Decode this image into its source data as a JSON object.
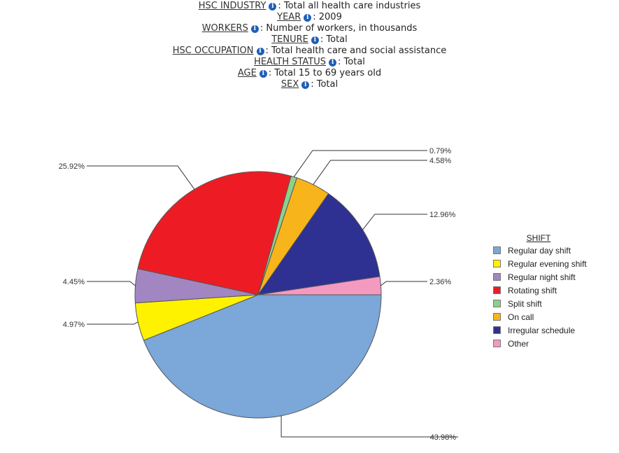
{
  "filters": [
    {
      "name": "HSC INDUSTRY",
      "value": "Total all health care industries"
    },
    {
      "name": "YEAR",
      "value": "2009"
    },
    {
      "name": "WORKERS",
      "value": "Number of workers, in thousands"
    },
    {
      "name": "TENURE",
      "value": "Total"
    },
    {
      "name": "HSC OCCUPATION",
      "value": "Total health care and social assistance"
    },
    {
      "name": "HEALTH STATUS",
      "value": "Total"
    },
    {
      "name": "AGE",
      "value": "Total 15 to 69 years old"
    },
    {
      "name": "SEX",
      "value": "Total"
    }
  ],
  "info_glyph": "i",
  "info_icon": "info-icon",
  "chart_data": {
    "type": "pie",
    "legend_title": "SHIFT",
    "legend_placement": "right",
    "slices": [
      {
        "name": "Regular day shift",
        "value": 43.98,
        "label": "43.98%",
        "color": "#7ba7d9"
      },
      {
        "name": "Regular evening shift",
        "value": 4.97,
        "label": "4.97%",
        "color": "#fff200"
      },
      {
        "name": "Regular night shift",
        "value": 4.45,
        "label": "4.45%",
        "color": "#a286c1"
      },
      {
        "name": "Rotating shift",
        "value": 25.92,
        "label": "25.92%",
        "color": "#ed1c24"
      },
      {
        "name": "Split shift",
        "value": 0.79,
        "label": "0.79%",
        "color": "#8ed08b"
      },
      {
        "name": "On call",
        "value": 4.58,
        "label": "4.58%",
        "color": "#f7b51b"
      },
      {
        "name": "Irregular schedule",
        "value": 12.96,
        "label": "12.96%",
        "color": "#2e3192"
      },
      {
        "name": "Other",
        "value": 2.36,
        "label": "2.36%",
        "color": "#f49ac1"
      }
    ]
  }
}
